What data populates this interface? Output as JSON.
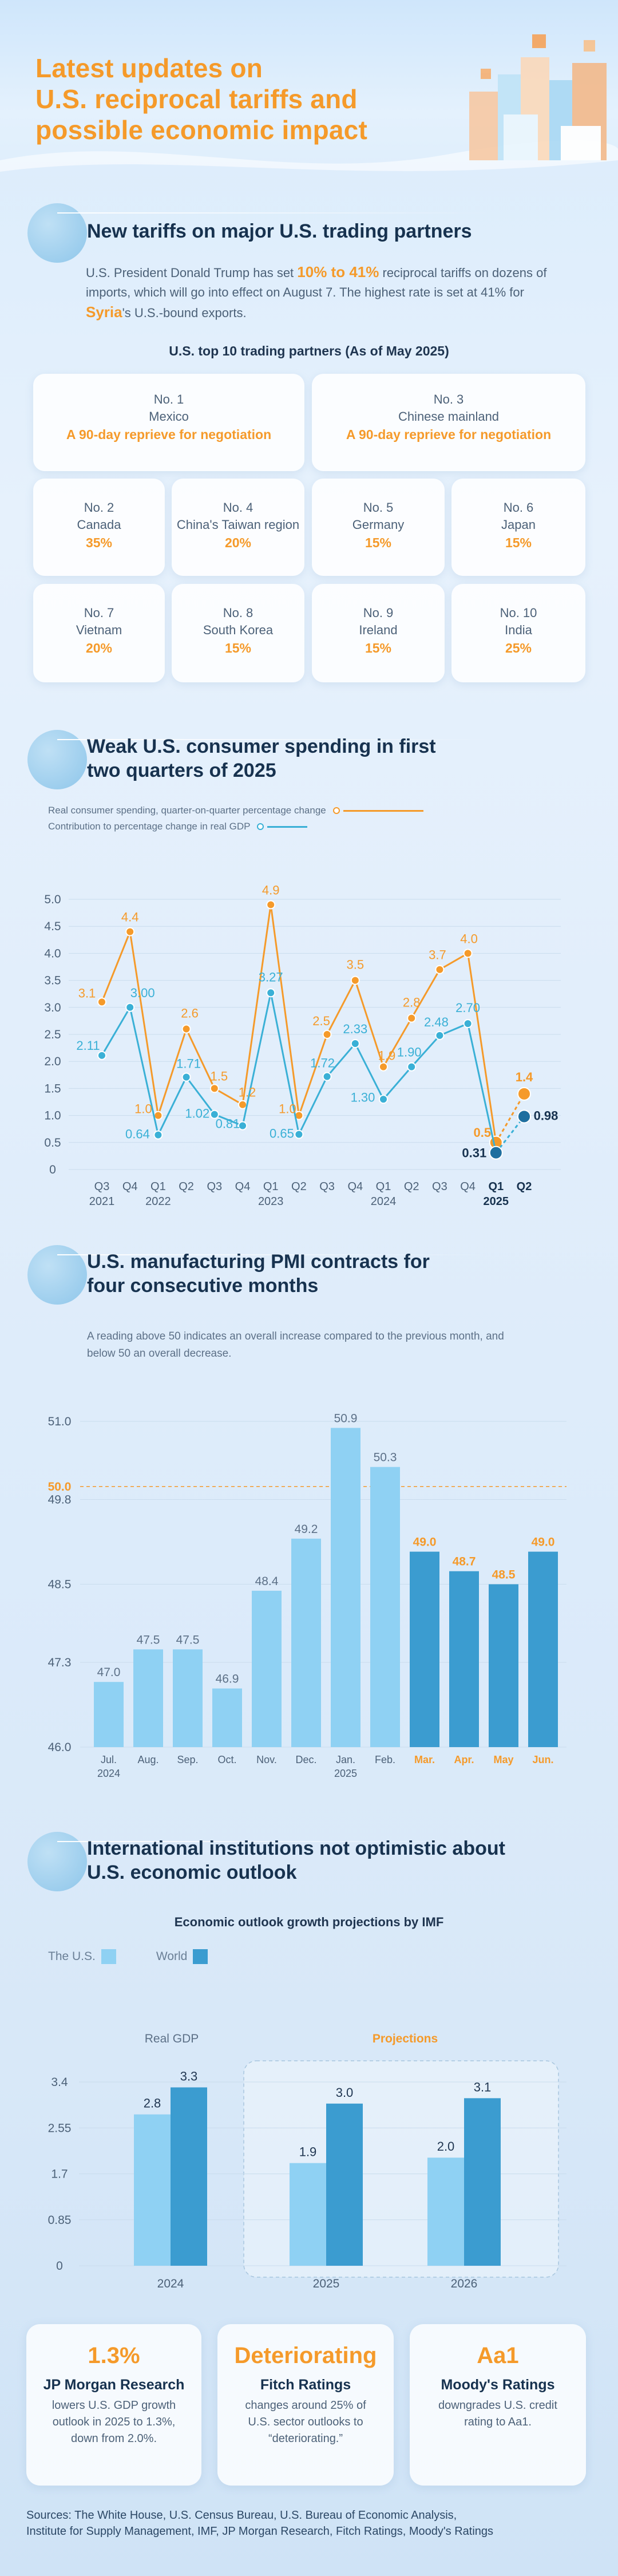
{
  "header": {
    "title_line1": "Latest updates on",
    "title_line2": "U.S. reciprocal tariffs and",
    "title_line3": "possible economic impact"
  },
  "section1": {
    "title": "New tariffs on major U.S. trading partners",
    "para_a": "U.S. President Donald Trump has set ",
    "para_hl1": "10% to 41%",
    "para_b": " reciprocal tariffs on dozens of imports, which will go into effect on August 7. The highest rate is set at 41% for ",
    "para_hl2": "Syria",
    "para_c": "'s U.S.-bound exports.",
    "table_title": "U.S. top 10 trading partners (As of May 2025)",
    "partners": [
      {
        "rank": "No. 1",
        "name": "Mexico",
        "rate": "A 90-day reprieve for negotiation"
      },
      {
        "rank": "No. 3",
        "name": "Chinese mainland",
        "rate": "A 90-day reprieve for negotiation"
      },
      {
        "rank": "No. 2",
        "name": "Canada",
        "rate": "35%"
      },
      {
        "rank": "No. 4",
        "name": "China's Taiwan region",
        "rate": "20%"
      },
      {
        "rank": "No. 5",
        "name": "Germany",
        "rate": "15%"
      },
      {
        "rank": "No. 6",
        "name": "Japan",
        "rate": "15%"
      },
      {
        "rank": "No. 7",
        "name": "Vietnam",
        "rate": "20%"
      },
      {
        "rank": "No. 8",
        "name": "South Korea",
        "rate": "15%"
      },
      {
        "rank": "No. 9",
        "name": "Ireland",
        "rate": "15%"
      },
      {
        "rank": "No. 10",
        "name": "India",
        "rate": "25%"
      }
    ]
  },
  "section2": {
    "title_line1": "Weak U.S. consumer spending in first",
    "title_line2": "two quarters of 2025"
  },
  "section3": {
    "title_line1": "U.S. manufacturing PMI contracts for",
    "title_line2": "four consecutive months",
    "note": "A reading above 50 indicates an overall increase compared to the previous month, and below 50 an overall decrease."
  },
  "section4": {
    "title_line1": "International institutions not optimistic about",
    "title_line2": "U.S. economic outlook",
    "chart_title": "Economic outlook growth projections by IMF",
    "legend_us": "The U.S.",
    "legend_world": "World",
    "real_gdp_label": "Real GDP",
    "projections_label": "Projections"
  },
  "institutions": [
    {
      "big": "1.3%",
      "org": "JP Morgan Research",
      "desc": "lowers U.S. GDP growth outlook in 2025 to 1.3%, down from 2.0%."
    },
    {
      "big": "Deteriorating",
      "org": "Fitch Ratings",
      "desc": "changes around 25% of U.S. sector outlooks to “deteriorating.”"
    },
    {
      "big": "Aa1",
      "org": "Moody's Ratings",
      "desc": "downgrades U.S. credit rating to Aa1."
    }
  ],
  "sources_line1": "Sources: The White House, U.S. Census Bureau, U.S. Bureau of Economic Analysis,",
  "sources_line2": "Institute for Supply Management, IMF, JP Morgan Research, Fitch Ratings, Moody's Ratings",
  "colors": {
    "accent": "#f59a2a",
    "blue": "#3ab0d6",
    "dark_blue": "#1f6f9f",
    "light_bar": "#8fd1f3",
    "dark_bar": "#3b9cd0"
  },
  "chart_data": [
    {
      "type": "line",
      "legend": [
        "Real consumer spending, quarter-on-quarter percentage change",
        "Contribution to percentage change in real GDP"
      ],
      "quarters": [
        "Q3",
        "Q4",
        "Q1",
        "Q2",
        "Q3",
        "Q4",
        "Q1",
        "Q2",
        "Q3",
        "Q4",
        "Q1",
        "Q2",
        "Q3",
        "Q4",
        "Q1",
        "Q2"
      ],
      "years": [
        {
          "label": "2021",
          "at": 0
        },
        {
          "label": "2022",
          "at": 2
        },
        {
          "label": "2023",
          "at": 6
        },
        {
          "label": "2024",
          "at": 10
        },
        {
          "label": "2025",
          "at": 14
        }
      ],
      "series": [
        {
          "name": "Real consumer spending",
          "values": [
            3.1,
            4.4,
            1.0,
            2.6,
            1.5,
            1.2,
            4.9,
            1.0,
            2.5,
            3.5,
            1.9,
            2.8,
            3.7,
            4.0,
            0.5,
            1.4
          ],
          "labels": [
            "3.1",
            "4.4",
            "1.0",
            "2.6",
            "1.5",
            "1.2",
            "4.9",
            "1.0",
            "2.5",
            "3.5",
            "1.9",
            "2.8",
            "3.7",
            "4.0",
            "0.5",
            "1.4"
          ]
        },
        {
          "name": "Contribution to GDP",
          "values": [
            2.11,
            3.0,
            0.64,
            1.71,
            1.02,
            0.81,
            3.27,
            0.65,
            1.72,
            2.33,
            1.3,
            1.9,
            2.48,
            2.7,
            0.31,
            0.98
          ],
          "labels": [
            "2.11",
            "3.00",
            "0.64",
            "1.71",
            "1.02",
            "0.81",
            "3.27",
            "0.65",
            "1.72",
            "2.33",
            "1.30",
            "1.90",
            "2.48",
            "2.70",
            "0.31",
            "0.98"
          ]
        }
      ],
      "yticks": [
        "0",
        "0.5",
        "1.0",
        "1.5",
        "2.0",
        "2.5",
        "3.0",
        "3.5",
        "4.0",
        "4.5",
        "5.0"
      ],
      "ylim": [
        0,
        5
      ]
    },
    {
      "type": "bar",
      "title": "U.S. manufacturing PMI",
      "categories": [
        "Jul.",
        "Aug.",
        "Sep.",
        "Oct.",
        "Nov.",
        "Dec.",
        "Jan.",
        "Feb.",
        "Mar.",
        "Apr.",
        "May",
        "Jun."
      ],
      "year_labels": [
        {
          "label": "2024",
          "at": 0
        },
        {
          "label": "2025",
          "at": 6
        }
      ],
      "values": [
        47.0,
        47.5,
        47.5,
        46.9,
        48.4,
        49.2,
        50.9,
        50.3,
        49.0,
        48.7,
        48.5,
        49.0
      ],
      "labels": [
        "47.0",
        "47.5",
        "47.5",
        "46.9",
        "48.4",
        "49.2",
        "50.9",
        "50.3",
        "49.0",
        "48.7",
        "48.5",
        "49.0"
      ],
      "highlight_from": 8,
      "yticks": [
        "46.0",
        "47.3",
        "48.5",
        "49.8",
        "50.0",
        "51.0"
      ],
      "ytick_values": [
        46.0,
        47.3,
        48.5,
        49.8,
        50.0,
        51.0
      ],
      "ylim": [
        46.0,
        51.0
      ]
    },
    {
      "type": "bar",
      "title": "Economic outlook growth projections by IMF",
      "categories": [
        "2024",
        "2025",
        "2026"
      ],
      "series": [
        {
          "name": "The U.S.",
          "values": [
            2.8,
            1.9,
            2.0
          ],
          "labels": [
            "2.8",
            "1.9",
            "2.0"
          ]
        },
        {
          "name": "World",
          "values": [
            3.3,
            3.0,
            3.1
          ],
          "labels": [
            "3.3",
            "3.0",
            "3.1"
          ]
        }
      ],
      "yticks": [
        "0",
        "0.85",
        "1.7",
        "2.55",
        "3.4"
      ],
      "ylim": [
        0,
        3.4
      ]
    }
  ]
}
